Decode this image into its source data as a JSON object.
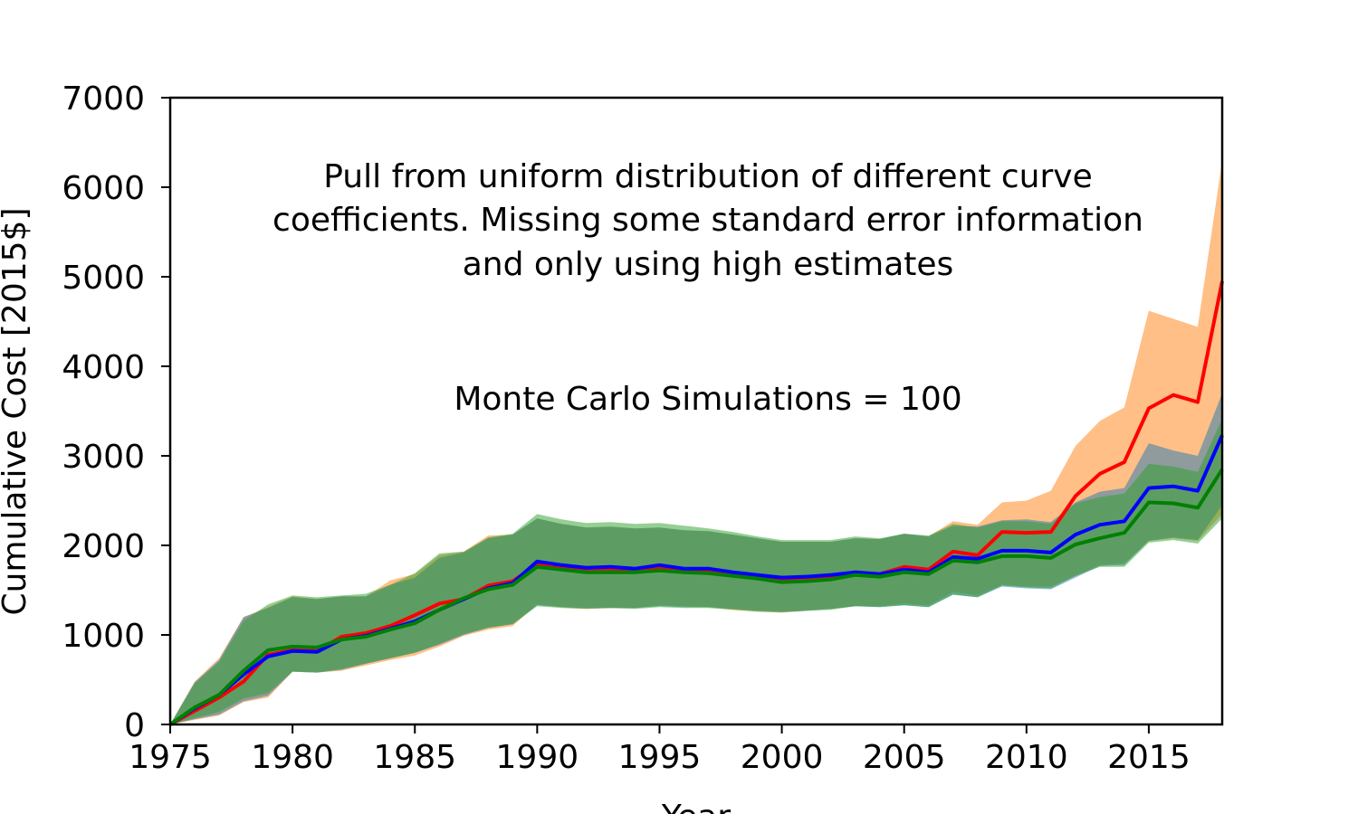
{
  "chart_data": {
    "type": "line",
    "title": "",
    "xlabel": "Year",
    "ylabel": "Cumulative Cost [2015$]",
    "xlim": [
      1975,
      2018
    ],
    "ylim": [
      0,
      7000
    ],
    "xticks": [
      1975,
      1980,
      1985,
      1990,
      1995,
      2000,
      2005,
      2010,
      2015
    ],
    "yticks": [
      0,
      1000,
      2000,
      3000,
      4000,
      5000,
      6000,
      7000
    ],
    "grid": false,
    "legend": "none",
    "annotations": [
      "Pull from uniform distribution of different curve",
      "coefficients. Missing some standard error information",
      "and only using high estimates",
      "Monte Carlo Simulations = 100"
    ],
    "x": [
      1975,
      1976,
      1977,
      1978,
      1979,
      1980,
      1981,
      1982,
      1983,
      1984,
      1985,
      1986,
      1987,
      1988,
      1989,
      1990,
      1991,
      1992,
      1993,
      1994,
      1995,
      1996,
      1997,
      1998,
      1999,
      2000,
      2001,
      2002,
      2003,
      2004,
      2005,
      2006,
      2007,
      2008,
      2009,
      2010,
      2011,
      2012,
      2013,
      2014,
      2015,
      2016,
      2017,
      2018
    ],
    "series": [
      {
        "color": "#ff0000",
        "band_color": "#ff7f0e",
        "values": [
          0,
          150,
          300,
          480,
          780,
          830,
          820,
          980,
          1020,
          1100,
          1220,
          1350,
          1400,
          1550,
          1600,
          1790,
          1760,
          1740,
          1740,
          1730,
          1740,
          1720,
          1710,
          1680,
          1650,
          1620,
          1640,
          1660,
          1700,
          1680,
          1760,
          1730,
          1930,
          1890,
          2150,
          2140,
          2150,
          2550,
          2800,
          2930,
          3530,
          3680,
          3600,
          4950
        ],
        "lower": [
          0,
          50,
          100,
          250,
          300,
          590,
          580,
          600,
          660,
          720,
          770,
          870,
          990,
          1060,
          1100,
          1340,
          1310,
          1290,
          1300,
          1300,
          1330,
          1320,
          1310,
          1280,
          1260,
          1250,
          1270,
          1290,
          1320,
          1320,
          1350,
          1330,
          1480,
          1440,
          1560,
          1540,
          1540,
          1660,
          1780,
          1800,
          2050,
          2080,
          2050,
          2350
        ],
        "upper": [
          0,
          480,
          740,
          1200,
          1310,
          1430,
          1400,
          1430,
          1430,
          1610,
          1680,
          1890,
          1930,
          2110,
          2120,
          2300,
          2240,
          2200,
          2210,
          2190,
          2200,
          2170,
          2160,
          2120,
          2080,
          2040,
          2040,
          2040,
          2080,
          2070,
          2130,
          2100,
          2270,
          2230,
          2480,
          2500,
          2610,
          3110,
          3390,
          3540,
          4620,
          4530,
          4440,
          6300
        ]
      },
      {
        "color": "#0000ff",
        "band_color": "#1f77b4",
        "values": [
          0,
          180,
          330,
          560,
          760,
          820,
          810,
          950,
          990,
          1070,
          1150,
          1280,
          1400,
          1520,
          1580,
          1820,
          1780,
          1750,
          1760,
          1740,
          1780,
          1740,
          1740,
          1700,
          1670,
          1640,
          1650,
          1670,
          1700,
          1680,
          1730,
          1700,
          1870,
          1850,
          1940,
          1940,
          1920,
          2120,
          2230,
          2270,
          2640,
          2660,
          2610,
          3230
        ],
        "lower": [
          0,
          60,
          110,
          260,
          320,
          590,
          580,
          610,
          680,
          740,
          800,
          890,
          1000,
          1080,
          1120,
          1330,
          1310,
          1300,
          1300,
          1300,
          1320,
          1310,
          1310,
          1290,
          1270,
          1260,
          1270,
          1290,
          1320,
          1310,
          1330,
          1310,
          1450,
          1420,
          1540,
          1520,
          1510,
          1640,
          1770,
          1780,
          2050,
          2090,
          2060,
          2450
        ],
        "upper": [
          0,
          470,
          720,
          1200,
          1300,
          1420,
          1400,
          1430,
          1430,
          1560,
          1640,
          1860,
          1920,
          2080,
          2120,
          2300,
          2240,
          2200,
          2210,
          2190,
          2200,
          2170,
          2160,
          2120,
          2080,
          2040,
          2040,
          2040,
          2080,
          2070,
          2130,
          2100,
          2220,
          2210,
          2280,
          2290,
          2260,
          2480,
          2600,
          2640,
          3140,
          3060,
          3000,
          3700
        ]
      },
      {
        "color": "#008000",
        "band_color": "#2ca02c",
        "values": [
          0,
          190,
          330,
          600,
          830,
          870,
          860,
          950,
          980,
          1060,
          1130,
          1280,
          1410,
          1510,
          1560,
          1760,
          1730,
          1700,
          1700,
          1700,
          1720,
          1700,
          1690,
          1660,
          1630,
          1590,
          1600,
          1620,
          1670,
          1650,
          1700,
          1680,
          1830,
          1810,
          1880,
          1880,
          1860,
          2010,
          2080,
          2140,
          2480,
          2470,
          2420,
          2850
        ],
        "lower": [
          0,
          70,
          140,
          290,
          350,
          590,
          580,
          620,
          680,
          740,
          800,
          900,
          1010,
          1080,
          1120,
          1320,
          1300,
          1290,
          1300,
          1290,
          1310,
          1300,
          1300,
          1280,
          1260,
          1250,
          1270,
          1280,
          1320,
          1310,
          1330,
          1310,
          1450,
          1420,
          1550,
          1530,
          1520,
          1660,
          1760,
          1760,
          2030,
          2060,
          2020,
          2300
        ],
        "upper": [
          0,
          460,
          700,
          1160,
          1340,
          1440,
          1420,
          1440,
          1460,
          1560,
          1690,
          1910,
          1930,
          2090,
          2130,
          2350,
          2290,
          2250,
          2260,
          2240,
          2250,
          2220,
          2190,
          2150,
          2100,
          2060,
          2060,
          2060,
          2100,
          2080,
          2130,
          2110,
          2240,
          2200,
          2270,
          2270,
          2240,
          2470,
          2540,
          2580,
          2910,
          2880,
          2820,
          3410
        ]
      }
    ]
  }
}
